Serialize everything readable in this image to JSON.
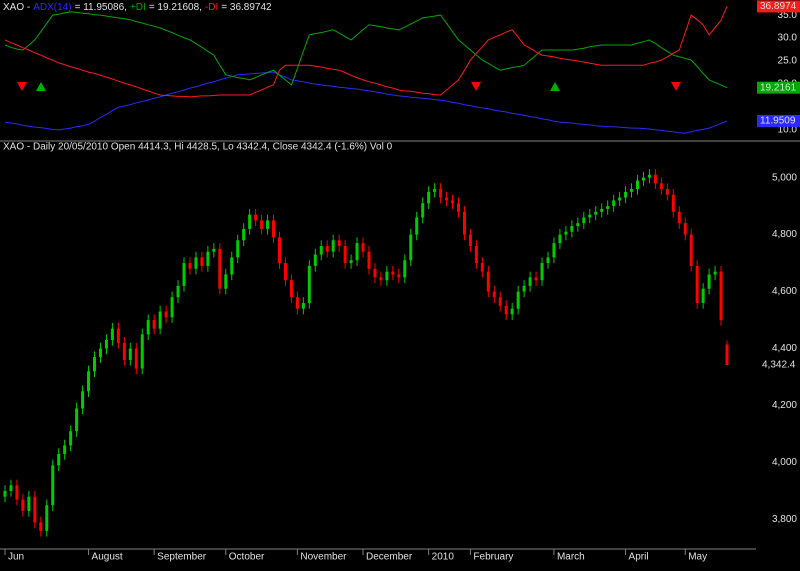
{
  "chart_data": [
    {
      "type": "line",
      "title": "XAO -",
      "ylim": [
        7.8,
        38.3
      ],
      "yticks": [
        {
          "value": 10,
          "label": "10.0"
        },
        {
          "value": 20,
          "label": "20.0"
        },
        {
          "value": 25,
          "label": "25.0"
        },
        {
          "value": 30,
          "label": "30.0"
        },
        {
          "value": 35,
          "label": "35.0"
        }
      ],
      "series": [
        {
          "name": "ADX(14)",
          "color": "#2a2aff",
          "header_value": "= 11.95086,",
          "last_label": "11.9509",
          "values": [
            11.7,
            11.5,
            11.3,
            11.0,
            10.8,
            10.6,
            10.5,
            10.3,
            10.1,
            10.0,
            10.2,
            10.4,
            10.7,
            10.9,
            11.2,
            11.9,
            12.7,
            13.4,
            14.2,
            14.9,
            15.2,
            15.5,
            15.9,
            16.2,
            16.5,
            16.9,
            17.2,
            17.6,
            18.0,
            18.3,
            18.7,
            19.1,
            19.4,
            19.8,
            20.2,
            20.5,
            20.9,
            21.3,
            21.6,
            22.0,
            22.1,
            22.2,
            22.3,
            22.4,
            22.5,
            22.6,
            22.0,
            21.5,
            20.9,
            20.7,
            20.5,
            20.2,
            20.0,
            19.8,
            19.6,
            19.5,
            19.3,
            19.2,
            19.0,
            18.9,
            18.7,
            18.5,
            18.3,
            18.1,
            17.8,
            17.6,
            17.4,
            17.3,
            17.1,
            17.0,
            16.9,
            16.8,
            16.6,
            16.5,
            16.3,
            16.0,
            15.8,
            15.5,
            15.3,
            15.0,
            14.8,
            14.6,
            14.3,
            14.1,
            13.9,
            13.6,
            13.4,
            13.2,
            12.9,
            12.7,
            12.4,
            12.2,
            11.9,
            11.7,
            11.6,
            11.5,
            11.3,
            11.2,
            11.1,
            10.9,
            10.8,
            10.7,
            10.7,
            10.6,
            10.5,
            10.4,
            10.4,
            10.3,
            10.2,
            10.0,
            9.9,
            9.7,
            9.6,
            9.4,
            9.3,
            9.6,
            9.9,
            10.1,
            10.4,
            10.9,
            11.4,
            11.95
          ]
        },
        {
          "name": "+DI",
          "color": "#00a800",
          "header_value": "= 19.21608,",
          "last_label": "19.2161",
          "values": [
            28.5,
            28.0,
            27.6,
            27.4,
            28.5,
            29.6,
            31.4,
            33.2,
            35.0,
            35.2,
            35.5,
            35.7,
            35.6,
            35.4,
            35.3,
            35.1,
            35.0,
            34.8,
            34.6,
            34.4,
            34.2,
            34.0,
            33.6,
            33.3,
            32.9,
            32.6,
            32.2,
            31.7,
            31.2,
            30.6,
            30.1,
            29.6,
            28.8,
            28.0,
            27.1,
            26.3,
            24.1,
            22.0,
            21.7,
            21.4,
            21.2,
            20.9,
            21.4,
            22.0,
            22.5,
            23.0,
            21.9,
            20.9,
            19.8,
            23.4,
            27.1,
            30.7,
            31.0,
            31.2,
            31.5,
            31.8,
            31.1,
            30.3,
            29.6,
            30.7,
            31.8,
            32.9,
            32.7,
            32.5,
            32.2,
            32.0,
            31.8,
            32.4,
            33.1,
            33.7,
            34.4,
            34.6,
            34.8,
            35.0,
            33.2,
            31.4,
            29.6,
            28.5,
            27.4,
            26.3,
            25.2,
            24.5,
            23.7,
            23.0,
            23.3,
            23.6,
            23.8,
            24.1,
            25.2,
            26.3,
            27.4,
            27.4,
            27.4,
            27.4,
            27.4,
            27.4,
            27.6,
            27.8,
            28.1,
            28.3,
            28.5,
            28.5,
            28.5,
            28.5,
            28.5,
            28.5,
            28.9,
            29.2,
            29.6,
            28.8,
            27.9,
            27.1,
            26.3,
            25.9,
            25.6,
            25.2,
            23.8,
            22.3,
            20.9,
            20.3,
            19.8,
            19.2
          ]
        },
        {
          "name": "-DI",
          "color": "#ff1a1a",
          "header_value": "= 36.89742",
          "last_label": "36.8974",
          "values": [
            29.6,
            29.0,
            28.5,
            27.9,
            27.4,
            26.8,
            26.3,
            25.7,
            25.2,
            24.6,
            24.2,
            23.8,
            23.4,
            23.0,
            22.6,
            22.3,
            21.9,
            21.5,
            21.1,
            20.6,
            20.2,
            19.8,
            19.4,
            18.9,
            18.5,
            18.0,
            17.6,
            17.5,
            17.4,
            17.3,
            17.3,
            17.2,
            17.3,
            17.4,
            17.4,
            17.5,
            17.6,
            17.6,
            17.6,
            17.6,
            17.6,
            17.6,
            18.2,
            18.7,
            19.3,
            19.8,
            23.0,
            24.1,
            24.1,
            24.1,
            24.1,
            24.1,
            23.9,
            23.7,
            23.4,
            23.2,
            23.0,
            22.5,
            21.9,
            21.4,
            20.9,
            20.5,
            20.2,
            19.8,
            19.4,
            19.1,
            18.7,
            18.5,
            18.4,
            18.2,
            18.0,
            17.9,
            17.7,
            17.6,
            18.7,
            19.8,
            20.9,
            23.0,
            25.2,
            26.7,
            28.1,
            29.6,
            30.2,
            30.7,
            31.3,
            31.8,
            30.2,
            28.5,
            27.8,
            27.0,
            26.3,
            26.1,
            25.9,
            25.6,
            25.4,
            25.2,
            25.0,
            24.8,
            24.5,
            24.3,
            24.1,
            24.1,
            24.1,
            24.1,
            24.1,
            24.1,
            24.1,
            24.1,
            24.5,
            24.8,
            25.2,
            25.9,
            26.7,
            27.4,
            31.2,
            35.0,
            34.0,
            32.9,
            30.7,
            32.3,
            33.9,
            36.9
          ]
        }
      ]
    },
    {
      "type": "candlestick",
      "title": "XAO - Daily 20/05/2010 Open 4414.3, Hi 4428.5, Lo 4342.4, Close 4342.4 (-1.6%) Vol 0",
      "up_color": "#00cc00",
      "down_color": "#ff0000",
      "ylim": [
        3700,
        5125
      ],
      "yticks": [
        {
          "value": 3800,
          "label": "3,800"
        },
        {
          "value": 4000,
          "label": "4,000"
        },
        {
          "value": 4200,
          "label": "4,200"
        },
        {
          "value": 4400,
          "label": "4,400"
        },
        {
          "value": 4600,
          "label": "4,600"
        },
        {
          "value": 4800,
          "label": "4,800"
        },
        {
          "value": 5000,
          "label": "5,000"
        }
      ],
      "xticks": [
        {
          "value": 0,
          "label": "Jun"
        },
        {
          "value": 14,
          "label": "August"
        },
        {
          "value": 25,
          "label": "September"
        },
        {
          "value": 37,
          "label": "October"
        },
        {
          "value": 49,
          "label": "November"
        },
        {
          "value": 60,
          "label": "December"
        },
        {
          "value": 71,
          "label": "2010"
        },
        {
          "value": 78,
          "label": "February"
        },
        {
          "value": 92,
          "label": "March"
        },
        {
          "value": 104,
          "label": "April"
        },
        {
          "value": 114,
          "label": "May"
        }
      ],
      "last_label": "4,342.4",
      "open": [
        3880,
        3900,
        3920,
        3870,
        3830,
        3880,
        3790,
        3760,
        3850,
        3990,
        4030,
        4060,
        4110,
        4190,
        4250,
        4320,
        4370,
        4400,
        4430,
        4470,
        4420,
        4360,
        4400,
        4330,
        4450,
        4500,
        4470,
        4530,
        4510,
        4580,
        4620,
        4700,
        4680,
        4720,
        4690,
        4740,
        4750,
        4610,
        4660,
        4720,
        4780,
        4820,
        4870,
        4850,
        4820,
        4850,
        4790,
        4700,
        4640,
        4580,
        4540,
        4560,
        4690,
        4730,
        4760,
        4740,
        4780,
        4760,
        4700,
        4710,
        4770,
        4740,
        4680,
        4650,
        4640,
        4670,
        4660,
        4650,
        4710,
        4800,
        4860,
        4910,
        4950,
        4960,
        4930,
        4920,
        4910,
        4880,
        4800,
        4760,
        4700,
        4670,
        4600,
        4580,
        4550,
        4520,
        4540,
        4600,
        4620,
        4650,
        4640,
        4700,
        4720,
        4770,
        4800,
        4810,
        4830,
        4840,
        4860,
        4870,
        4880,
        4890,
        4900,
        4920,
        4930,
        4950,
        4960,
        4990,
        5000,
        5010,
        4980,
        4960,
        4940,
        4880,
        4840,
        4800,
        4690,
        4560,
        4610,
        4660,
        4670,
        4414.3
      ],
      "high": [
        3920,
        3940,
        3940,
        3890,
        3900,
        3900,
        3810,
        3870,
        4010,
        4050,
        4080,
        4130,
        4210,
        4270,
        4340,
        4390,
        4420,
        4450,
        4490,
        4490,
        4440,
        4420,
        4420,
        4470,
        4520,
        4520,
        4550,
        4550,
        4600,
        4640,
        4720,
        4720,
        4740,
        4740,
        4760,
        4770,
        4770,
        4680,
        4740,
        4800,
        4840,
        4890,
        4890,
        4870,
        4870,
        4870,
        4810,
        4720,
        4660,
        4600,
        4580,
        4710,
        4750,
        4780,
        4780,
        4800,
        4800,
        4780,
        4730,
        4790,
        4790,
        4760,
        4700,
        4670,
        4690,
        4690,
        4680,
        4730,
        4820,
        4880,
        4930,
        4970,
        4980,
        4980,
        4950,
        4940,
        4930,
        4900,
        4820,
        4780,
        4720,
        4690,
        4620,
        4600,
        4570,
        4560,
        4620,
        4640,
        4670,
        4670,
        4720,
        4740,
        4790,
        4820,
        4830,
        4850,
        4860,
        4880,
        4890,
        4900,
        4910,
        4920,
        4940,
        4950,
        4970,
        4980,
        5010,
        5020,
        5030,
        5030,
        5000,
        4980,
        4960,
        4900,
        4860,
        4820,
        4710,
        4630,
        4680,
        4690,
        4690,
        4428.5
      ],
      "low": [
        3860,
        3880,
        3850,
        3810,
        3810,
        3770,
        3740,
        3740,
        3830,
        3970,
        4010,
        4040,
        4090,
        4170,
        4230,
        4300,
        4350,
        4380,
        4410,
        4400,
        4340,
        4340,
        4310,
        4310,
        4430,
        4450,
        4450,
        4490,
        4490,
        4560,
        4600,
        4660,
        4660,
        4670,
        4670,
        4720,
        4590,
        4590,
        4640,
        4700,
        4760,
        4800,
        4830,
        4800,
        4800,
        4770,
        4680,
        4620,
        4560,
        4520,
        4520,
        4540,
        4670,
        4710,
        4720,
        4720,
        4740,
        4680,
        4680,
        4690,
        4720,
        4660,
        4630,
        4620,
        4620,
        4640,
        4630,
        4630,
        4690,
        4780,
        4840,
        4890,
        4930,
        4910,
        4900,
        4890,
        4860,
        4780,
        4740,
        4680,
        4650,
        4580,
        4560,
        4530,
        4500,
        4500,
        4520,
        4580,
        4600,
        4620,
        4620,
        4680,
        4700,
        4750,
        4780,
        4790,
        4810,
        4820,
        4840,
        4850,
        4860,
        4870,
        4880,
        4900,
        4910,
        4930,
        4940,
        4970,
        4980,
        4960,
        4940,
        4920,
        4860,
        4820,
        4780,
        4670,
        4540,
        4540,
        4590,
        4640,
        4480,
        4342.4
      ],
      "close": [
        3900,
        3920,
        3870,
        3830,
        3880,
        3790,
        3760,
        3850,
        3990,
        4030,
        4060,
        4110,
        4190,
        4250,
        4320,
        4370,
        4400,
        4430,
        4470,
        4420,
        4360,
        4400,
        4330,
        4450,
        4500,
        4470,
        4530,
        4510,
        4580,
        4620,
        4700,
        4680,
        4720,
        4690,
        4740,
        4750,
        4610,
        4660,
        4720,
        4780,
        4820,
        4870,
        4850,
        4820,
        4850,
        4790,
        4700,
        4640,
        4580,
        4540,
        4560,
        4690,
        4730,
        4760,
        4740,
        4780,
        4760,
        4700,
        4710,
        4770,
        4740,
        4680,
        4650,
        4640,
        4670,
        4660,
        4650,
        4710,
        4800,
        4860,
        4910,
        4950,
        4960,
        4930,
        4920,
        4910,
        4880,
        4800,
        4760,
        4700,
        4670,
        4600,
        4580,
        4550,
        4520,
        4540,
        4600,
        4620,
        4650,
        4640,
        4700,
        4720,
        4770,
        4800,
        4810,
        4830,
        4840,
        4860,
        4870,
        4880,
        4890,
        4900,
        4920,
        4930,
        4950,
        4960,
        4990,
        5000,
        5010,
        4980,
        4960,
        4940,
        4880,
        4840,
        4800,
        4690,
        4560,
        4610,
        4660,
        4670,
        4500,
        4342.4
      ]
    }
  ]
}
